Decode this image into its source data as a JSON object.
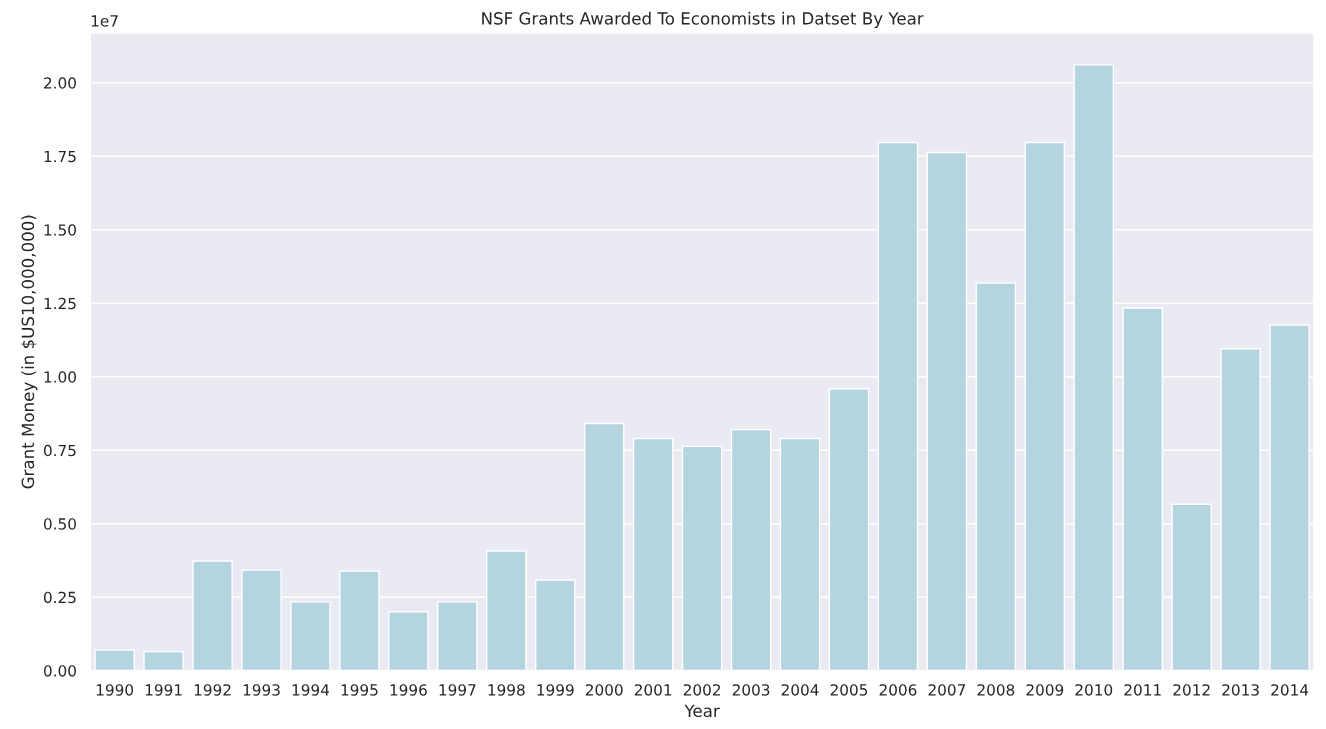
{
  "chart_data": {
    "type": "bar",
    "title": "NSF Grants Awarded To Economists in Datset By Year",
    "xlabel": "Year",
    "ylabel": "Grant Money (in $US10,000,000)",
    "categories": [
      "1990",
      "1991",
      "1992",
      "1993",
      "1994",
      "1995",
      "1996",
      "1997",
      "1998",
      "1999",
      "2000",
      "2001",
      "2002",
      "2003",
      "2004",
      "2005",
      "2006",
      "2007",
      "2008",
      "2009",
      "2010",
      "2011",
      "2012",
      "2013",
      "2014"
    ],
    "values": [
      0.07,
      0.065,
      0.373,
      0.342,
      0.234,
      0.339,
      0.2,
      0.234,
      0.407,
      0.308,
      0.841,
      0.79,
      0.763,
      0.82,
      0.79,
      0.959,
      1.797,
      1.763,
      1.319,
      1.797,
      2.061,
      1.234,
      0.566,
      1.095,
      1.176
    ],
    "color": "#b4d5e0",
    "ylim": [
      0,
      2.17
    ],
    "yticks": [
      {
        "value": 0,
        "label": "0.00"
      },
      0.25,
      {
        "value": 0.5,
        "label": "0.50"
      },
      0.75,
      {
        "value": 1,
        "label": "1.00"
      },
      1.25,
      {
        "value": 1.5,
        "label": "1.50"
      },
      1.75,
      {
        "value": 2,
        "label": "2.00"
      }
    ],
    "annotations": [
      "1e7"
    ],
    "grid": "y"
  }
}
